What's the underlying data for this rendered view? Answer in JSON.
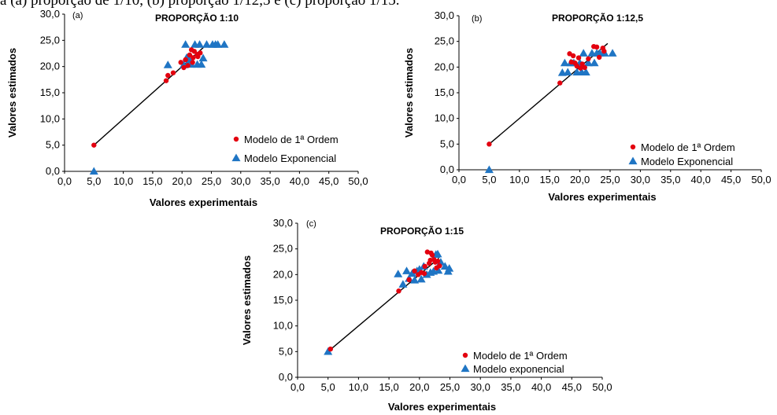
{
  "caption": "a (a) proporção de 1/10, (b) proporção 1/12,5 e (c) proporção 1/15.",
  "colors": {
    "first_order": "#e3000f",
    "exponential": "#1f75c4",
    "fit_line": "#000000"
  },
  "chart_data": [
    {
      "type": "scatter",
      "panel_label": "(a)",
      "title": "PROPORÇÃO 1:10",
      "xlabel": "Valores experimentais",
      "ylabel": "Valores estimados",
      "xlim": [
        0,
        50
      ],
      "ylim": [
        0,
        30
      ],
      "x_ticks": [
        "0,0",
        "5,0",
        "10,0",
        "15,0",
        "20,0",
        "25,0",
        "30,0",
        "35,0",
        "40,0",
        "45,0",
        "50,0"
      ],
      "y_ticks": [
        "0,0",
        "5,0",
        "10,0",
        "15,0",
        "20,0",
        "25,0",
        "30,0"
      ],
      "grid": false,
      "legend_position": "lower-right",
      "fit_line": [
        [
          5.0,
          5.0
        ],
        [
          23.8,
          23.8
        ]
      ],
      "series": [
        {
          "name": "Modelo de 1ª Ordem",
          "marker": "circle",
          "points": [
            [
              5.0,
              5.0
            ],
            [
              17.3,
              17.3
            ],
            [
              17.6,
              18.3
            ],
            [
              18.5,
              18.8
            ],
            [
              19.8,
              20.8
            ],
            [
              20.3,
              19.8
            ],
            [
              20.6,
              21.3
            ],
            [
              21.0,
              20.2
            ],
            [
              21.3,
              22.2
            ],
            [
              21.6,
              23.2
            ],
            [
              21.9,
              21.7
            ],
            [
              22.1,
              22.9
            ],
            [
              22.6,
              22.3
            ],
            [
              21.8,
              20.8
            ],
            [
              22.7,
              21.9
            ],
            [
              23.1,
              22.6
            ]
          ]
        },
        {
          "name": "Modelo Exponencial",
          "marker": "triangle",
          "points": [
            [
              5.0,
              0.0
            ],
            [
              17.6,
              20.3
            ],
            [
              20.3,
              20.3
            ],
            [
              20.6,
              24.2
            ],
            [
              20.8,
              21.7
            ],
            [
              21.3,
              21.2
            ],
            [
              21.6,
              20.4
            ],
            [
              22.2,
              24.2
            ],
            [
              22.6,
              20.4
            ],
            [
              23.0,
              24.2
            ],
            [
              23.3,
              20.4
            ],
            [
              23.6,
              21.6
            ],
            [
              24.2,
              24.2
            ],
            [
              25.2,
              24.2
            ],
            [
              25.7,
              24.2
            ],
            [
              26.1,
              24.2
            ],
            [
              27.2,
              24.2
            ]
          ]
        }
      ]
    },
    {
      "type": "scatter",
      "panel_label": "(b)",
      "title": "PROPORÇÃO 1:12,5",
      "xlabel": "Valores experimentais",
      "ylabel": "Valores estimados",
      "xlim": [
        0,
        50
      ],
      "ylim": [
        0,
        30
      ],
      "x_ticks": [
        "0,0",
        "5,0",
        "10,0",
        "15,0",
        "20,0",
        "25,0",
        "30,0",
        "35,0",
        "40,0",
        "45,0",
        "50,0"
      ],
      "y_ticks": [
        "0,0",
        "5,0",
        "10,0",
        "15,0",
        "20,0",
        "25,0",
        "30,0"
      ],
      "grid": false,
      "legend_position": "lower-right",
      "fit_line": [
        [
          5.0,
          5.0
        ],
        [
          24.6,
          24.6
        ]
      ],
      "series": [
        {
          "name": "Modelo de 1ª Ordem",
          "marker": "circle",
          "points": [
            [
              5.0,
              5.0
            ],
            [
              16.7,
              16.9
            ],
            [
              18.3,
              22.6
            ],
            [
              18.6,
              21.0
            ],
            [
              18.9,
              22.2
            ],
            [
              19.2,
              20.8
            ],
            [
              19.5,
              20.2
            ],
            [
              19.8,
              21.8
            ],
            [
              20.1,
              19.8
            ],
            [
              20.4,
              20.6
            ],
            [
              20.8,
              19.9
            ],
            [
              21.4,
              21.6
            ],
            [
              22.3,
              24.0
            ],
            [
              22.8,
              23.9
            ],
            [
              23.2,
              21.9
            ],
            [
              23.8,
              23.7
            ],
            [
              24.0,
              23.1
            ]
          ]
        },
        {
          "name": "Modelo Exponencial",
          "marker": "triangle",
          "points": [
            [
              5.0,
              0.0
            ],
            [
              17.1,
              18.9
            ],
            [
              17.5,
              20.8
            ],
            [
              18.0,
              19.0
            ],
            [
              18.5,
              20.8
            ],
            [
              19.0,
              20.8
            ],
            [
              19.5,
              19.0
            ],
            [
              20.0,
              20.8
            ],
            [
              20.3,
              19.0
            ],
            [
              20.6,
              22.7
            ],
            [
              21.0,
              19.0
            ],
            [
              21.4,
              20.8
            ],
            [
              22.0,
              22.7
            ],
            [
              22.4,
              20.8
            ],
            [
              22.8,
              22.7
            ],
            [
              23.3,
              22.7
            ],
            [
              24.1,
              22.7
            ],
            [
              25.4,
              22.7
            ]
          ]
        }
      ]
    },
    {
      "type": "scatter",
      "panel_label": "(c)",
      "title": "PROPORÇÃO 1:15",
      "xlabel": "Valores experimentais",
      "ylabel": "Valores estimados",
      "xlim": [
        0,
        50
      ],
      "ylim": [
        0,
        30
      ],
      "x_ticks": [
        "0,0",
        "5,0",
        "10,0",
        "15,0",
        "20,0",
        "25,0",
        "30,0",
        "35,0",
        "40,0",
        "45,0",
        "50,0"
      ],
      "y_ticks": [
        "0,0",
        "5,0",
        "10,0",
        "15,0",
        "20,0",
        "25,0",
        "30,0"
      ],
      "grid": false,
      "legend_position": "lower-right",
      "fit_line": [
        [
          5.0,
          5.0
        ],
        [
          23.2,
          23.2
        ]
      ],
      "series": [
        {
          "name": "Modelo de 1ª Ordem",
          "marker": "circle",
          "points": [
            [
              5.4,
              5.5
            ],
            [
              16.6,
              16.8
            ],
            [
              18.3,
              19.0
            ],
            [
              19.2,
              20.7
            ],
            [
              19.8,
              20.0
            ],
            [
              20.3,
              20.4
            ],
            [
              20.8,
              20.2
            ],
            [
              21.3,
              24.4
            ],
            [
              21.6,
              22.2
            ],
            [
              21.9,
              24.2
            ],
            [
              22.1,
              23.8
            ],
            [
              22.4,
              22.9
            ],
            [
              22.6,
              22.4
            ],
            [
              22.8,
              21.3
            ],
            [
              23.0,
              22.6
            ],
            [
              23.3,
              21.7
            ],
            [
              21.8,
              22.8
            ],
            [
              20.9,
              21.6
            ]
          ]
        },
        {
          "name": "Modelo exponencial",
          "marker": "triangle",
          "points": [
            [
              5.0,
              5.0
            ],
            [
              16.5,
              20.1
            ],
            [
              17.3,
              18.1
            ],
            [
              17.9,
              20.7
            ],
            [
              18.3,
              19.2
            ],
            [
              18.8,
              20.2
            ],
            [
              19.2,
              18.9
            ],
            [
              19.6,
              20.7
            ],
            [
              20.0,
              21.0
            ],
            [
              20.3,
              19.1
            ],
            [
              20.7,
              21.6
            ],
            [
              21.2,
              20.0
            ],
            [
              21.8,
              20.4
            ],
            [
              22.3,
              20.6
            ],
            [
              22.7,
              23.9
            ],
            [
              23.1,
              20.8
            ],
            [
              23.5,
              22.4
            ],
            [
              24.2,
              21.6
            ],
            [
              24.7,
              20.6
            ],
            [
              24.9,
              21.2
            ],
            [
              23.0,
              24.0
            ]
          ]
        }
      ]
    }
  ]
}
